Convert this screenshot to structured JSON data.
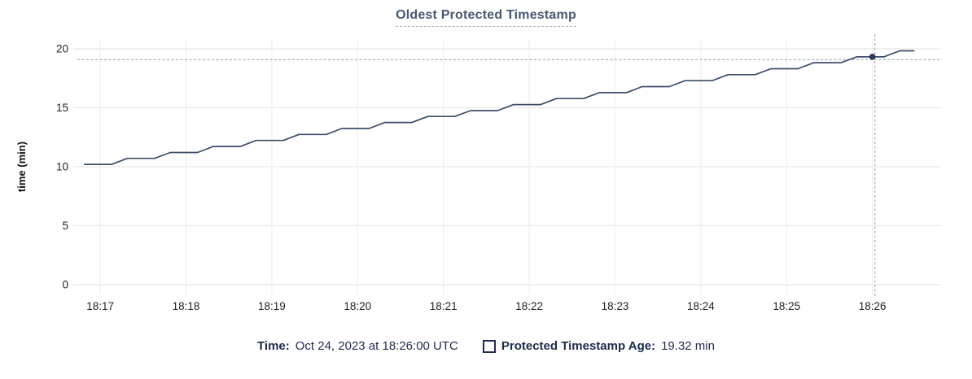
{
  "chart_data": {
    "type": "line",
    "title": "Oldest Protected Timestamp",
    "xlabel": "",
    "ylabel": "time (min)",
    "ylim": [
      0,
      20
    ],
    "y_ticks": [
      0,
      5,
      10,
      15,
      20
    ],
    "x_tick_labels": [
      "18:17",
      "18:18",
      "18:19",
      "18:20",
      "18:21",
      "18:22",
      "18:23",
      "18:24",
      "18:25",
      "18:26"
    ],
    "x_tick_seconds": [
      0,
      60,
      120,
      180,
      240,
      300,
      360,
      420,
      480,
      540
    ],
    "x_range_seconds": [
      -16,
      588
    ],
    "grid": true,
    "legend_position": "bottom",
    "series": [
      {
        "name": "Protected Timestamp Age",
        "color": "#3c4d68",
        "points_t_v": [
          [
            -11,
            10.2
          ],
          [
            8,
            10.2
          ],
          [
            19,
            10.71
          ],
          [
            38,
            10.71
          ],
          [
            49,
            11.21
          ],
          [
            68,
            11.21
          ],
          [
            79,
            11.72
          ],
          [
            98,
            11.72
          ],
          [
            109,
            12.23
          ],
          [
            128,
            12.23
          ],
          [
            139,
            12.74
          ],
          [
            158,
            12.74
          ],
          [
            169,
            13.24
          ],
          [
            188,
            13.24
          ],
          [
            199,
            13.75
          ],
          [
            218,
            13.75
          ],
          [
            229,
            14.26
          ],
          [
            248,
            14.26
          ],
          [
            259,
            14.76
          ],
          [
            278,
            14.76
          ],
          [
            289,
            15.27
          ],
          [
            308,
            15.27
          ],
          [
            319,
            15.78
          ],
          [
            338,
            15.78
          ],
          [
            349,
            16.28
          ],
          [
            368,
            16.28
          ],
          [
            379,
            16.79
          ],
          [
            398,
            16.79
          ],
          [
            409,
            17.3
          ],
          [
            428,
            17.3
          ],
          [
            439,
            17.81
          ],
          [
            458,
            17.81
          ],
          [
            469,
            18.31
          ],
          [
            488,
            18.31
          ],
          [
            499,
            18.82
          ],
          [
            518,
            18.82
          ],
          [
            529,
            19.32
          ],
          [
            548,
            19.32
          ],
          [
            559,
            19.83
          ],
          [
            569,
            19.83
          ]
        ]
      }
    ],
    "hover": {
      "t": 540,
      "value": 19.32
    }
  },
  "legend": {
    "time_label": "Time:",
    "time_value": "Oct 24, 2023 at 18:26:00 UTC",
    "series_label": "Protected Timestamp Age:",
    "series_value": "19.32 min"
  },
  "colors": {
    "title": "#475872",
    "line": "#3c4d68",
    "dot": "#2c3b57",
    "crosshair": "#9fb2bd",
    "h_grid": "#e8e8e8",
    "v_grid": "#f0f0f0",
    "tick_text": "#232323",
    "legend_text": "#1e2b4d"
  }
}
